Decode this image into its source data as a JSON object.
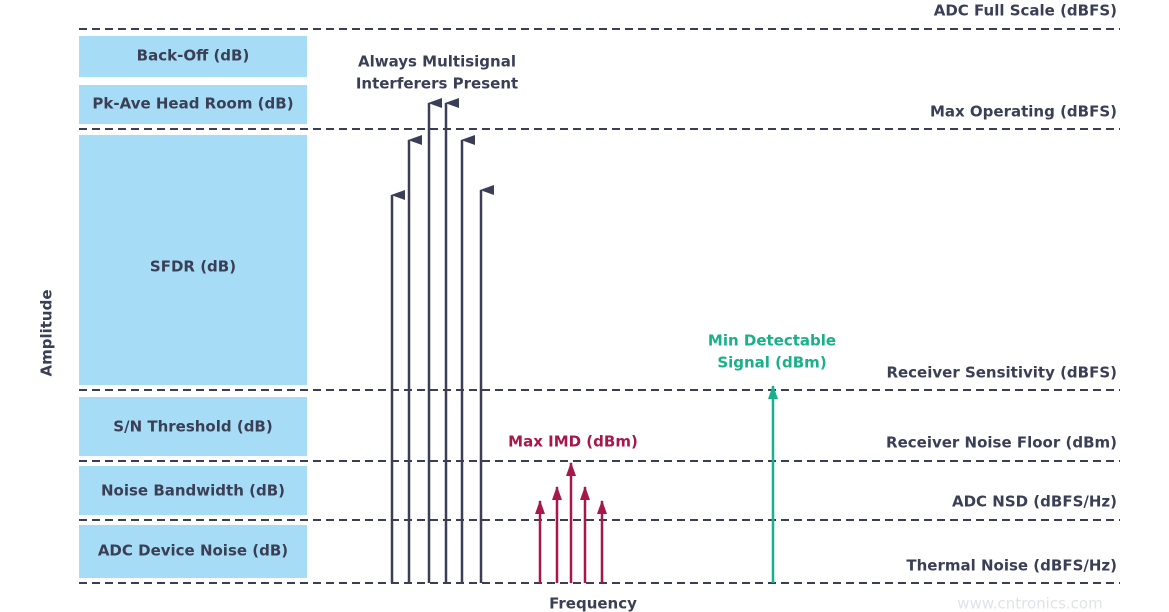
{
  "left_boxes": [
    "Back-Off (dB)",
    "Pk-Ave Head Room (dB)",
    "SFDR (dB)",
    "S/N Threshold (dB)",
    "Noise Bandwidth (dB)",
    "ADC Device Noise (dB)"
  ],
  "right_labels": [
    "ADC Full Scale (dBFS)",
    "Max Operating (dBFS)",
    "Receiver Sensitivity (dBFS)",
    "Receiver Noise Floor (dBm)",
    "ADC NSD (dBFS/Hz)",
    "Thermal Noise (dBFS/Hz)"
  ],
  "interferers_label": [
    "Always Multisignal",
    "Interferers Present"
  ],
  "imd_label": "Max IMD (dBm)",
  "signal_label": [
    "Min Detectable",
    "Signal (dBm)"
  ],
  "y_axis_label": "Amplitude",
  "x_axis_label": "Frequency",
  "watermark": "www.cntronics.com"
}
